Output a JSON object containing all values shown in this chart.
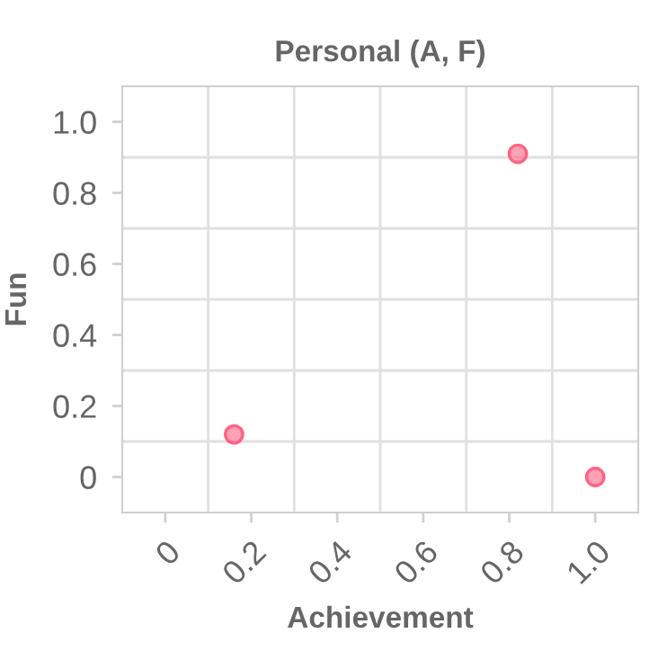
{
  "chart_data": {
    "type": "scatter",
    "title": "Personal (A, F)",
    "xlabel": "Achievement",
    "ylabel": "Fun",
    "x": [
      0.16,
      0.82,
      1.0
    ],
    "series": [
      {
        "color": "#ff6384",
        "values": [
          0.12,
          0.91,
          0.0
        ]
      }
    ],
    "xlim": [
      -0.1,
      1.1
    ],
    "ylim": [
      -0.1,
      1.1
    ],
    "xticks": [
      {
        "value": 0,
        "label": "0"
      },
      {
        "value": 0.2,
        "label": "0.2"
      },
      {
        "value": 0.4,
        "label": "0.4"
      },
      {
        "value": 0.6,
        "label": "0.6"
      },
      {
        "value": 0.8,
        "label": "0.8"
      },
      {
        "value": 1.0,
        "label": "1.0"
      }
    ],
    "yticks": [
      {
        "value": 0,
        "label": "0"
      },
      {
        "value": 0.2,
        "label": "0.2"
      },
      {
        "value": 0.4,
        "label": "0.4"
      },
      {
        "value": 0.6,
        "label": "0.6"
      },
      {
        "value": 0.8,
        "label": "0.8"
      },
      {
        "value": 1.0,
        "label": "1.0"
      }
    ],
    "grid": true,
    "marker": "circle",
    "legend": false
  }
}
